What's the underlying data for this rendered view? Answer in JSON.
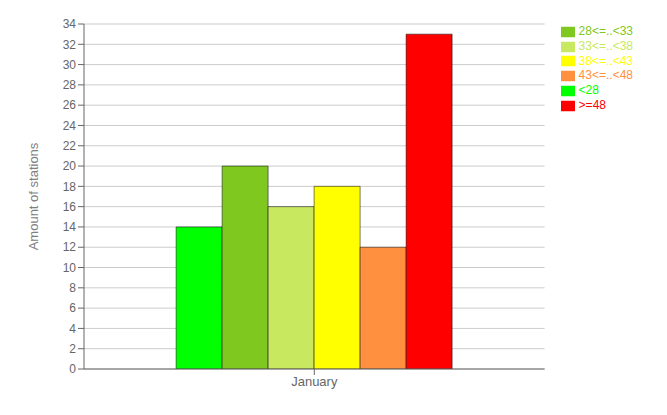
{
  "chart_data": {
    "type": "bar",
    "categories": [
      "January"
    ],
    "series": [
      {
        "name": "<28",
        "color": "#00FF00",
        "values": [
          14
        ]
      },
      {
        "name": "28<=..<33",
        "color": "#7EC820",
        "values": [
          20
        ]
      },
      {
        "name": "33<=..<38",
        "color": "#C8E860",
        "values": [
          16
        ]
      },
      {
        "name": "38<=..<43",
        "color": "#FFFF00",
        "values": [
          18
        ]
      },
      {
        "name": "43<=..<48",
        "color": "#FF9040",
        "values": [
          12
        ]
      },
      {
        "name": ">=48",
        "color": "#FF0000",
        "values": [
          33
        ]
      }
    ],
    "ylabel": "Amount of stations",
    "ylim": [
      0,
      34
    ],
    "yticks": [
      0,
      2,
      4,
      6,
      8,
      10,
      12,
      14,
      16,
      18,
      20,
      22,
      24,
      26,
      28,
      30,
      32,
      34
    ],
    "grid": true,
    "legend": "upper right"
  }
}
